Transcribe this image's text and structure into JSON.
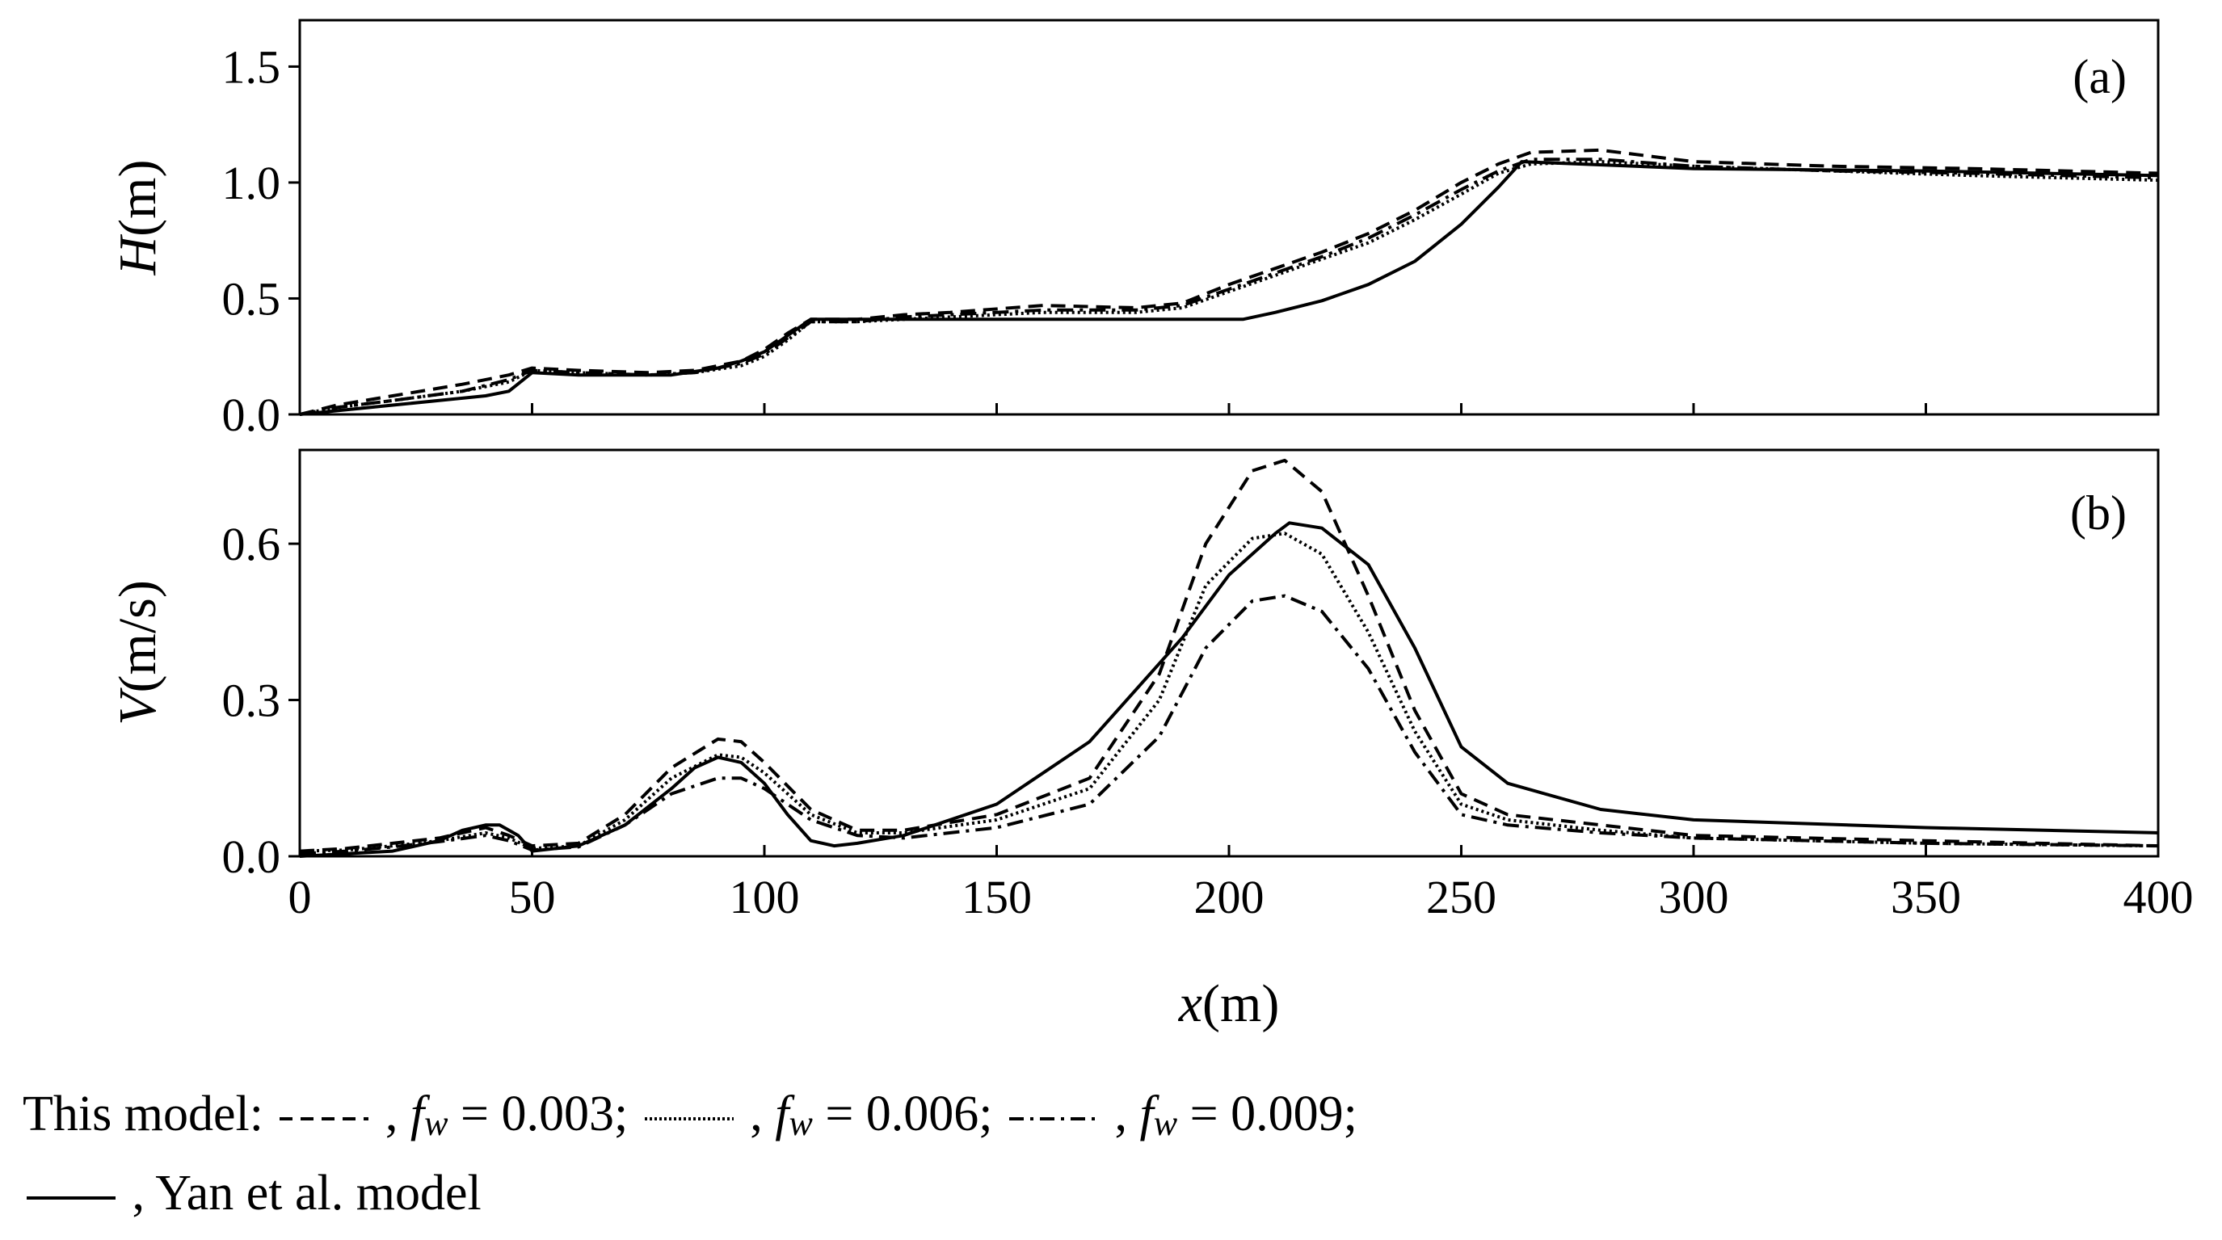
{
  "chart_data": [
    {
      "type": "line",
      "panel": "(a)",
      "ylabel_var": "H",
      "ylabel_unit": "(m)",
      "xlim": [
        0,
        400
      ],
      "ylim": [
        0,
        1.7
      ],
      "yticks": [
        "0.0",
        "0.5",
        "1.0",
        "1.5"
      ],
      "ytick_values": [
        0,
        0.5,
        1.0,
        1.5
      ],
      "series": [
        {
          "name": "fw = 0.003",
          "style": "dashed",
          "x": [
            0,
            8,
            20,
            35,
            45,
            50,
            60,
            75,
            85,
            95,
            100,
            105,
            110,
            120,
            130,
            140,
            160,
            180,
            190,
            200,
            210,
            220,
            230,
            240,
            250,
            258,
            265,
            280,
            300,
            330,
            360,
            400
          ],
          "y": [
            0,
            0.04,
            0.08,
            0.13,
            0.17,
            0.2,
            0.19,
            0.18,
            0.19,
            0.23,
            0.28,
            0.35,
            0.41,
            0.41,
            0.43,
            0.44,
            0.47,
            0.46,
            0.48,
            0.56,
            0.63,
            0.7,
            0.78,
            0.88,
            1.0,
            1.08,
            1.13,
            1.14,
            1.09,
            1.07,
            1.06,
            1.04
          ]
        },
        {
          "name": "fw = 0.006",
          "style": "dotted",
          "x": [
            0,
            8,
            20,
            35,
            45,
            50,
            60,
            75,
            85,
            95,
            100,
            105,
            110,
            120,
            130,
            140,
            160,
            180,
            190,
            200,
            210,
            220,
            230,
            240,
            250,
            258,
            265,
            280,
            300,
            330,
            360,
            400
          ],
          "y": [
            0,
            0.03,
            0.06,
            0.1,
            0.14,
            0.19,
            0.18,
            0.17,
            0.18,
            0.21,
            0.25,
            0.32,
            0.4,
            0.4,
            0.41,
            0.42,
            0.44,
            0.44,
            0.46,
            0.53,
            0.6,
            0.67,
            0.74,
            0.84,
            0.95,
            1.04,
            1.08,
            1.09,
            1.07,
            1.05,
            1.03,
            1.01
          ]
        },
        {
          "name": "fw = 0.009",
          "style": "dashdot",
          "x": [
            0,
            8,
            20,
            35,
            45,
            50,
            60,
            75,
            85,
            95,
            100,
            105,
            110,
            120,
            130,
            140,
            160,
            180,
            190,
            200,
            210,
            220,
            230,
            240,
            250,
            258,
            265,
            280,
            300,
            330,
            360,
            400
          ],
          "y": [
            0,
            0.03,
            0.06,
            0.1,
            0.15,
            0.19,
            0.18,
            0.17,
            0.18,
            0.22,
            0.26,
            0.33,
            0.4,
            0.4,
            0.42,
            0.43,
            0.45,
            0.45,
            0.47,
            0.54,
            0.61,
            0.68,
            0.76,
            0.86,
            0.97,
            1.05,
            1.1,
            1.1,
            1.07,
            1.05,
            1.04,
            1.02
          ]
        },
        {
          "name": "Yan et al. model",
          "style": "solid",
          "x": [
            0,
            10,
            20,
            30,
            40,
            45,
            50,
            60,
            70,
            80,
            90,
            95,
            100,
            105,
            110,
            120,
            150,
            180,
            203,
            210,
            220,
            230,
            240,
            250,
            258,
            263,
            300,
            350,
            400
          ],
          "y": [
            0,
            0.02,
            0.04,
            0.06,
            0.08,
            0.1,
            0.18,
            0.17,
            0.17,
            0.17,
            0.2,
            0.23,
            0.27,
            0.34,
            0.41,
            0.41,
            0.41,
            0.41,
            0.41,
            0.44,
            0.49,
            0.56,
            0.66,
            0.82,
            0.98,
            1.09,
            1.06,
            1.05,
            1.03
          ]
        }
      ]
    },
    {
      "type": "line",
      "panel": "(b)",
      "ylabel_var": "V",
      "ylabel_unit": "(m/s)",
      "xlabel_var": "x",
      "xlabel_unit": "(m)",
      "xlim": [
        0,
        400
      ],
      "ylim": [
        0,
        0.78
      ],
      "yticks": [
        "0.0",
        "0.3",
        "0.6"
      ],
      "ytick_values": [
        0,
        0.3,
        0.6
      ],
      "xticks": [
        "0",
        "50",
        "100",
        "150",
        "200",
        "250",
        "300",
        "350",
        "400"
      ],
      "xtick_values": [
        0,
        50,
        100,
        150,
        200,
        250,
        300,
        350,
        400
      ],
      "series": [
        {
          "name": "fw = 0.003",
          "style": "dashed",
          "x": [
            0,
            10,
            20,
            30,
            40,
            45,
            50,
            60,
            70,
            80,
            90,
            95,
            100,
            110,
            120,
            130,
            150,
            170,
            185,
            195,
            205,
            212,
            220,
            230,
            240,
            250,
            260,
            280,
            300,
            350,
            400
          ],
          "y": [
            0.01,
            0.015,
            0.025,
            0.035,
            0.055,
            0.04,
            0.02,
            0.025,
            0.08,
            0.17,
            0.225,
            0.22,
            0.18,
            0.09,
            0.05,
            0.05,
            0.08,
            0.15,
            0.35,
            0.6,
            0.74,
            0.76,
            0.7,
            0.5,
            0.28,
            0.12,
            0.08,
            0.06,
            0.04,
            0.03,
            0.02
          ]
        },
        {
          "name": "fw = 0.006",
          "style": "dotted",
          "x": [
            0,
            10,
            20,
            30,
            40,
            45,
            50,
            60,
            70,
            80,
            90,
            95,
            100,
            110,
            120,
            130,
            150,
            170,
            185,
            195,
            205,
            212,
            220,
            230,
            240,
            250,
            260,
            280,
            300,
            350,
            400
          ],
          "y": [
            0.01,
            0.012,
            0.02,
            0.03,
            0.045,
            0.035,
            0.015,
            0.02,
            0.07,
            0.15,
            0.195,
            0.19,
            0.16,
            0.08,
            0.045,
            0.045,
            0.07,
            0.13,
            0.3,
            0.52,
            0.61,
            0.62,
            0.58,
            0.43,
            0.24,
            0.1,
            0.07,
            0.05,
            0.035,
            0.025,
            0.02
          ]
        },
        {
          "name": "fw = 0.009",
          "style": "dashdot",
          "x": [
            0,
            10,
            20,
            30,
            40,
            45,
            50,
            60,
            70,
            80,
            90,
            95,
            100,
            110,
            120,
            130,
            150,
            170,
            185,
            195,
            205,
            212,
            220,
            230,
            240,
            250,
            260,
            280,
            300,
            350,
            400
          ],
          "y": [
            0.005,
            0.01,
            0.018,
            0.028,
            0.04,
            0.03,
            0.012,
            0.018,
            0.06,
            0.12,
            0.15,
            0.15,
            0.13,
            0.07,
            0.04,
            0.035,
            0.055,
            0.1,
            0.23,
            0.4,
            0.49,
            0.5,
            0.47,
            0.36,
            0.2,
            0.08,
            0.06,
            0.045,
            0.035,
            0.025,
            0.02
          ]
        },
        {
          "name": "Yan et al. model",
          "style": "solid",
          "x": [
            0,
            10,
            20,
            30,
            35,
            40,
            43,
            47,
            50,
            60,
            70,
            80,
            85,
            90,
            95,
            100,
            105,
            110,
            115,
            120,
            130,
            150,
            170,
            190,
            200,
            210,
            213,
            220,
            230,
            240,
            250,
            260,
            280,
            300,
            350,
            400
          ],
          "y": [
            0,
            0.005,
            0.01,
            0.03,
            0.05,
            0.06,
            0.06,
            0.04,
            0.01,
            0.02,
            0.06,
            0.13,
            0.17,
            0.19,
            0.18,
            0.14,
            0.08,
            0.03,
            0.02,
            0.025,
            0.04,
            0.1,
            0.22,
            0.42,
            0.54,
            0.62,
            0.64,
            0.63,
            0.56,
            0.4,
            0.21,
            0.14,
            0.09,
            0.07,
            0.055,
            0.045
          ]
        }
      ]
    }
  ],
  "legend": {
    "prefix": "This model:",
    "entries": [
      {
        "sep": ",",
        "var": "f",
        "sub": "w",
        "eq": "= 0.003;"
      },
      {
        "sep": ",",
        "var": "f",
        "sub": "w",
        "eq": "= 0.006;"
      },
      {
        "sep": ",",
        "var": "f",
        "sub": "w",
        "eq": "= 0.009;"
      }
    ],
    "yan_label": ", Yan et al. model"
  }
}
